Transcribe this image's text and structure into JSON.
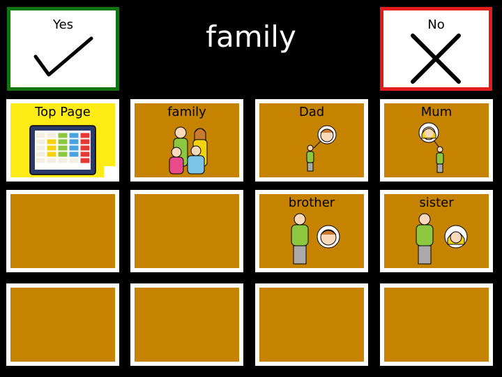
{
  "yes": {
    "label": "Yes"
  },
  "no": {
    "label": "No"
  },
  "title": "family",
  "grid": {
    "top_page": {
      "label": "Top Page",
      "icon": "keyboard-grid-icon"
    },
    "family": {
      "label": "family",
      "icon": "family-group-icon"
    },
    "dad": {
      "label": "Dad",
      "icon": "man-face-icon"
    },
    "mum": {
      "label": "Mum",
      "icon": "woman-face-icon"
    },
    "brother": {
      "label": "brother",
      "icon": "boy-face-icon"
    },
    "sister": {
      "label": "sister",
      "icon": "girl-face-icon"
    }
  },
  "colors": {
    "tile": "#c68300",
    "yes_border": "#127512",
    "no_border": "#e21b1b",
    "top_page_tile": "#ffeb16"
  }
}
